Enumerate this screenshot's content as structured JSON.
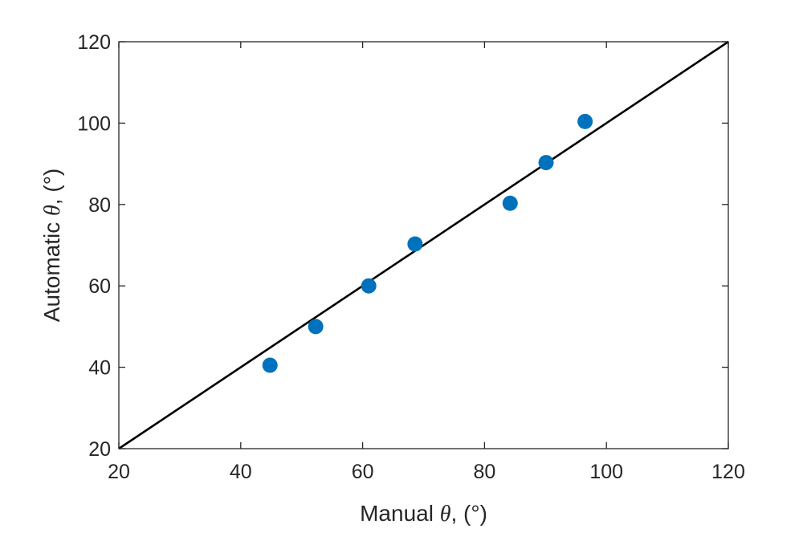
{
  "chart_data": {
    "type": "scatter",
    "title": "",
    "xlabel": {
      "pre": "Manual ",
      "symbol": "θ",
      "post": ", (°)"
    },
    "ylabel": {
      "pre": "Automatic ",
      "symbol": "θ",
      "post": ", (°)"
    },
    "xlim": [
      20,
      120
    ],
    "ylim": [
      20,
      120
    ],
    "xticks": [
      20,
      40,
      60,
      80,
      100,
      120
    ],
    "yticks": [
      20,
      40,
      60,
      80,
      100,
      120
    ],
    "grid": false,
    "series": [
      {
        "type": "scatter",
        "color": "#0072BD",
        "points": [
          {
            "x": 44.8,
            "y": 40.5
          },
          {
            "x": 52.3,
            "y": 50.0
          },
          {
            "x": 61.0,
            "y": 60.0
          },
          {
            "x": 68.6,
            "y": 70.3
          },
          {
            "x": 84.2,
            "y": 80.3
          },
          {
            "x": 90.1,
            "y": 90.3
          },
          {
            "x": 96.5,
            "y": 100.4
          }
        ]
      },
      {
        "type": "line",
        "color": "#000000",
        "points": [
          {
            "x": 20,
            "y": 20
          },
          {
            "x": 120,
            "y": 120
          }
        ]
      }
    ]
  }
}
